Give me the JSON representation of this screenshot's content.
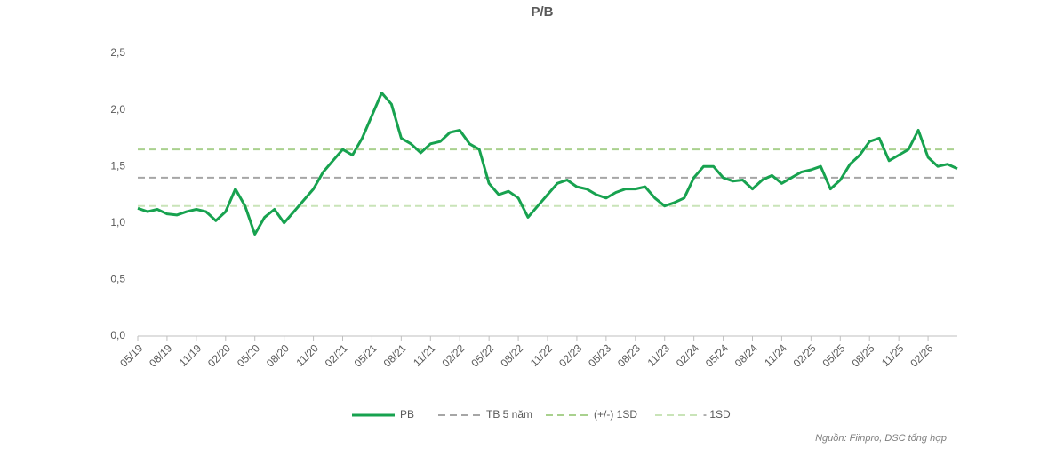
{
  "chart_data": {
    "type": "line",
    "title": "P/B",
    "categories": [
      "05/19",
      null,
      null,
      "08/19",
      null,
      null,
      "11/19",
      null,
      null,
      "02/20",
      null,
      null,
      "05/20",
      null,
      null,
      "08/20",
      null,
      null,
      "11/20",
      null,
      null,
      "02/21",
      null,
      null,
      "05/21",
      null,
      null,
      "08/21",
      null,
      null,
      "11/21",
      null,
      null,
      "02/22",
      null,
      null,
      "05/22",
      null,
      null,
      "08/22",
      null,
      null,
      "11/22",
      null,
      null,
      "02/23",
      null,
      null,
      "05/23",
      null,
      null,
      "08/23",
      null,
      null,
      "11/23",
      null,
      null,
      "02/24",
      null,
      null,
      "05/24",
      null,
      null,
      "08/24",
      null,
      null,
      "11/24",
      null,
      null,
      "02/25",
      null,
      null,
      "05/25",
      null,
      null,
      "08/25",
      null,
      null,
      "11/25",
      null,
      null,
      "02/26",
      null,
      null,
      null
    ],
    "series": [
      {
        "name": "PB",
        "color": "#17a24f",
        "values": [
          1.13,
          1.1,
          1.12,
          1.08,
          1.07,
          1.1,
          1.12,
          1.1,
          1.02,
          1.1,
          1.3,
          1.15,
          0.9,
          1.05,
          1.12,
          1.0,
          1.1,
          1.2,
          1.3,
          1.45,
          1.55,
          1.65,
          1.6,
          1.75,
          1.95,
          2.15,
          2.05,
          1.75,
          1.7,
          1.62,
          1.7,
          1.72,
          1.8,
          1.82,
          1.7,
          1.65,
          1.35,
          1.25,
          1.28,
          1.22,
          1.05,
          1.15,
          1.25,
          1.35,
          1.38,
          1.32,
          1.3,
          1.25,
          1.22,
          1.27,
          1.3,
          1.3,
          1.32,
          1.22,
          1.15,
          1.18,
          1.22,
          1.4,
          1.5,
          1.5,
          1.4,
          1.37,
          1.38,
          1.3,
          1.38,
          1.42,
          1.35,
          1.4,
          1.45,
          1.47,
          1.5,
          1.3,
          1.38,
          1.52,
          1.6,
          1.72,
          1.75,
          1.55,
          1.6,
          1.65,
          1.82,
          1.58,
          1.5,
          1.52,
          1.48
        ]
      }
    ],
    "reference_lines": [
      {
        "name": "TB 5 năm",
        "value": 1.4,
        "color": "#a6a6a6"
      },
      {
        "name": "(+/-) 1SD",
        "value": 1.65,
        "color": "#a9d18e"
      },
      {
        "name": "- 1SD",
        "value": 1.15,
        "color": "#c9e4b8"
      }
    ],
    "ylim": [
      0,
      2.5
    ],
    "yticks": [
      {
        "value": 0,
        "label": "0,0"
      },
      {
        "value": 0.5,
        "label": "0,5"
      },
      {
        "value": 1,
        "label": "1,0"
      },
      {
        "value": 1.5,
        "label": "1,5"
      },
      {
        "value": 2,
        "label": "2,0"
      },
      {
        "value": 2.5,
        "label": "2,5"
      }
    ],
    "source": "Nguồn: Fiinpro, DSC tổng hợp"
  }
}
